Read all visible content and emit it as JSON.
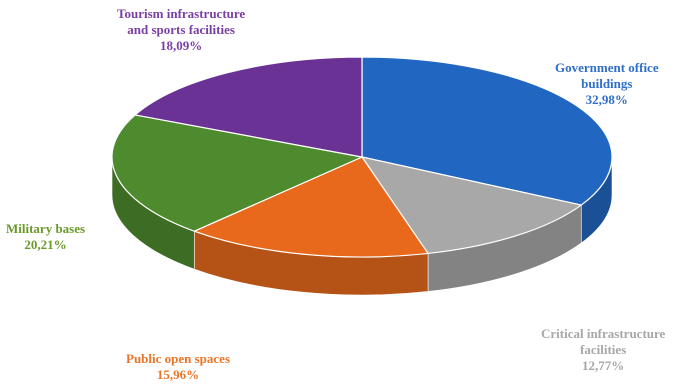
{
  "chart_data": {
    "type": "pie",
    "title": "",
    "style": "3d",
    "slices": [
      {
        "label_lines": [
          "Government office",
          "buildings"
        ],
        "value": 32.98,
        "value_label": "32,98%",
        "color": "#2166C0",
        "label_color": "#2E6FCB"
      },
      {
        "label_lines": [
          "Critical infrastructure",
          "facilities"
        ],
        "value": 12.77,
        "value_label": "12,77%",
        "color": "#A8A8A8",
        "label_color": "#A7A7A7"
      },
      {
        "label_lines": [
          "Public open spaces"
        ],
        "value": 15.96,
        "value_label": "15,96%",
        "color": "#E8691B",
        "label_color": "#E8762A"
      },
      {
        "label_lines": [
          "Military bases"
        ],
        "value": 20.21,
        "value_label": "20,21%",
        "color": "#4E8A2E",
        "label_color": "#6A9A2A"
      },
      {
        "label_lines": [
          "Tourism infrastructure",
          "and sports facilities"
        ],
        "value": 18.09,
        "value_label": "18,09%",
        "color": "#6A3294",
        "label_color": "#7A3FA6"
      }
    ]
  }
}
